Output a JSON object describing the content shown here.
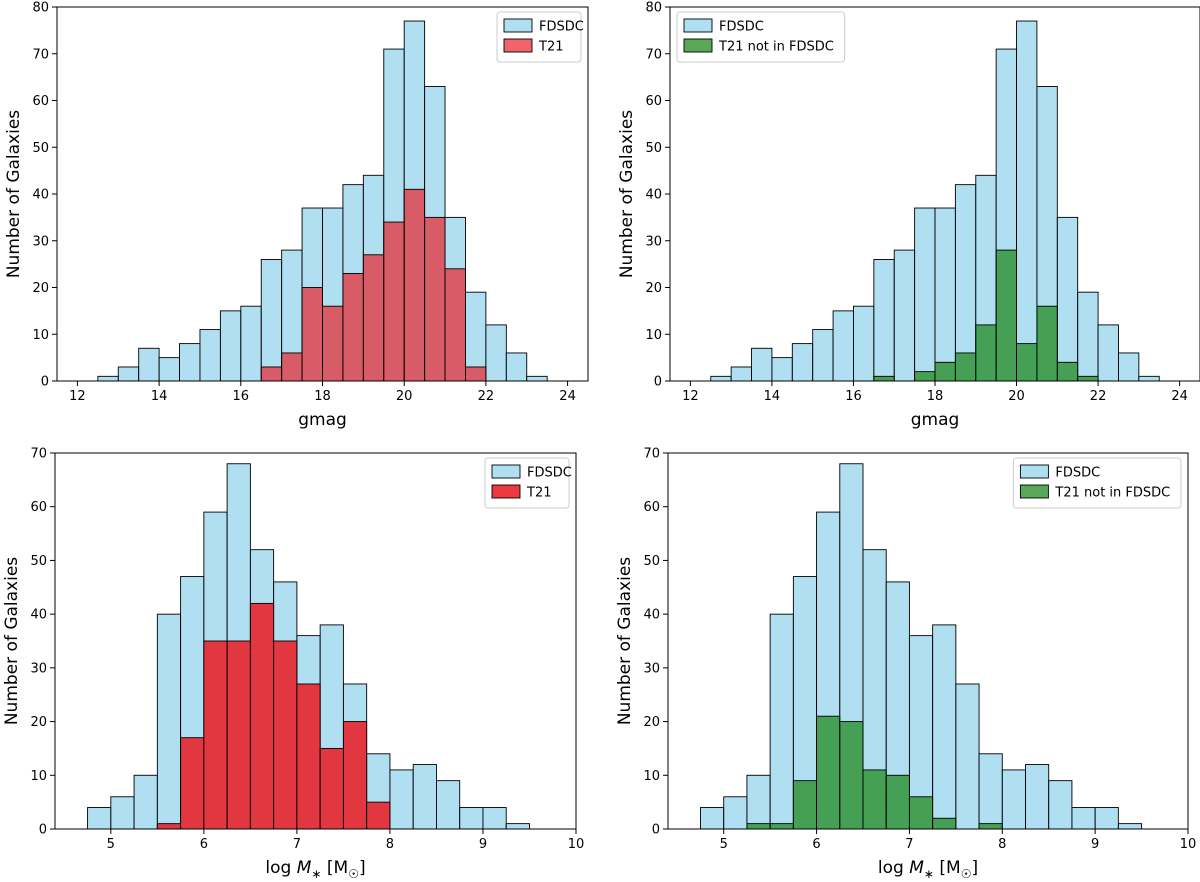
{
  "colors": {
    "fdsdc": "#87CEEB",
    "t21_red": "#E8242C",
    "t21_green": "#228B22",
    "bar_edge": "#000000"
  },
  "chart_data": [
    {
      "type": "bar",
      "panel": "top-left",
      "xlabel": "gmag",
      "ylabel": "Number of Galaxies",
      "xlim": [
        11.5,
        24.5
      ],
      "ylim": [
        0,
        80
      ],
      "xticks": [
        12,
        14,
        16,
        18,
        20,
        22,
        24
      ],
      "yticks": [
        0,
        10,
        20,
        30,
        40,
        50,
        60,
        70,
        80
      ],
      "bin_edges": [
        12.5,
        13.0,
        13.5,
        14.0,
        14.5,
        15.0,
        15.5,
        16.0,
        16.5,
        17.0,
        17.5,
        18.0,
        18.5,
        19.0,
        19.5,
        20.0,
        20.5,
        21.0,
        21.5,
        22.0,
        22.5,
        23.0,
        23.5
      ],
      "legend_position": "top-right",
      "series": [
        {
          "name": "FDSDC",
          "color": "#87CEEB",
          "opacity": 0.65,
          "values": [
            1,
            3,
            7,
            5,
            8,
            11,
            15,
            16,
            26,
            28,
            37,
            37,
            42,
            44,
            71,
            77,
            63,
            35,
            19,
            12,
            6,
            1
          ]
        },
        {
          "name": "T21",
          "color": "#E8242C",
          "opacity": 0.7,
          "values": [
            0,
            0,
            0,
            0,
            0,
            0,
            0,
            0,
            3,
            6,
            20,
            16,
            23,
            27,
            34,
            41,
            35,
            24,
            3,
            0,
            0,
            0
          ]
        }
      ]
    },
    {
      "type": "bar",
      "panel": "top-right",
      "xlabel": "gmag",
      "ylabel": "Number of Galaxies",
      "xlim": [
        11.5,
        24.5
      ],
      "ylim": [
        0,
        80
      ],
      "xticks": [
        12,
        14,
        16,
        18,
        20,
        22,
        24
      ],
      "yticks": [
        0,
        10,
        20,
        30,
        40,
        50,
        60,
        70,
        80
      ],
      "bin_edges": [
        12.5,
        13.0,
        13.5,
        14.0,
        14.5,
        15.0,
        15.5,
        16.0,
        16.5,
        17.0,
        17.5,
        18.0,
        18.5,
        19.0,
        19.5,
        20.0,
        20.5,
        21.0,
        21.5,
        22.0,
        22.5,
        23.0,
        23.5
      ],
      "legend_position": "top-left",
      "series": [
        {
          "name": "FDSDC",
          "color": "#87CEEB",
          "opacity": 0.65,
          "values": [
            1,
            3,
            7,
            5,
            8,
            11,
            15,
            16,
            26,
            28,
            37,
            37,
            42,
            44,
            71,
            77,
            63,
            35,
            19,
            12,
            6,
            1
          ]
        },
        {
          "name": "T21 not in FDSDC",
          "color": "#228B22",
          "opacity": 0.75,
          "values": [
            0,
            0,
            0,
            0,
            0,
            0,
            0,
            0,
            1,
            0,
            2,
            4,
            6,
            12,
            28,
            8,
            16,
            4,
            1,
            0,
            0,
            0
          ]
        }
      ]
    },
    {
      "type": "bar",
      "panel": "bottom-left",
      "xlabel": "log M_* [M_☉]",
      "ylabel": "Number of Galaxies",
      "xlim": [
        4.4,
        10.0
      ],
      "ylim": [
        0,
        70
      ],
      "xticks": [
        5,
        6,
        7,
        8,
        9,
        10
      ],
      "yticks": [
        0,
        10,
        20,
        30,
        40,
        50,
        60,
        70
      ],
      "bin_edges": [
        4.75,
        5.0,
        5.25,
        5.5,
        5.75,
        6.0,
        6.25,
        6.5,
        6.75,
        7.0,
        7.25,
        7.5,
        7.75,
        8.0,
        8.25,
        8.5,
        8.75,
        9.0,
        9.25,
        9.5
      ],
      "legend_position": "top-right",
      "series": [
        {
          "name": "FDSDC",
          "color": "#87CEEB",
          "opacity": 0.65,
          "values": [
            4,
            6,
            10,
            40,
            47,
            59,
            68,
            52,
            46,
            36,
            38,
            27,
            14,
            11,
            12,
            9,
            4,
            4,
            1
          ]
        },
        {
          "name": "T21",
          "color": "#E8242C",
          "opacity": 0.9,
          "values": [
            0,
            0,
            0,
            1,
            17,
            35,
            35,
            42,
            35,
            27,
            15,
            20,
            5,
            0,
            0,
            0,
            0,
            0,
            0
          ]
        }
      ]
    },
    {
      "type": "bar",
      "panel": "bottom-right",
      "xlabel": "log M_* [M_☉]",
      "ylabel": "Number of Galaxies",
      "xlim": [
        4.4,
        10.0
      ],
      "ylim": [
        0,
        70
      ],
      "xticks": [
        5,
        6,
        7,
        8,
        9,
        10
      ],
      "yticks": [
        0,
        10,
        20,
        30,
        40,
        50,
        60,
        70
      ],
      "bin_edges": [
        4.75,
        5.0,
        5.25,
        5.5,
        5.75,
        6.0,
        6.25,
        6.5,
        6.75,
        7.0,
        7.25,
        7.5,
        7.75,
        8.0,
        8.25,
        8.5,
        8.75,
        9.0,
        9.25,
        9.5
      ],
      "legend_position": "top-right",
      "series": [
        {
          "name": "FDSDC",
          "color": "#87CEEB",
          "opacity": 0.65,
          "values": [
            4,
            6,
            10,
            40,
            47,
            59,
            68,
            52,
            46,
            36,
            38,
            27,
            14,
            11,
            12,
            9,
            4,
            4,
            1
          ]
        },
        {
          "name": "T21 not in FDSDC",
          "color": "#228B22",
          "opacity": 0.75,
          "values": [
            0,
            0,
            1,
            1,
            9,
            21,
            20,
            11,
            10,
            6,
            2,
            0,
            1,
            0,
            0,
            0,
            0,
            0,
            0
          ]
        }
      ]
    }
  ]
}
